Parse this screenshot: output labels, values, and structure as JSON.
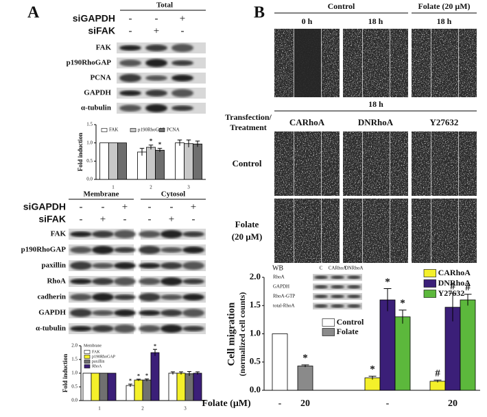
{
  "panel_a": {
    "label": "A",
    "total": {
      "header": "Total",
      "rows": [
        {
          "label": "siGAPDH",
          "signs": [
            "-",
            "-",
            "+"
          ]
        },
        {
          "label": "siFAK",
          "signs": [
            "-",
            "+",
            "-"
          ]
        }
      ],
      "blots": [
        "FAK",
        "p190RhoGAP",
        "PCNA",
        "GAPDH",
        "α-tubulin"
      ]
    },
    "fractions": {
      "headers": [
        "Membrane",
        "Cytosol"
      ],
      "rows": [
        {
          "label": "siGAPDH",
          "signs": [
            "-",
            "-",
            "+",
            "-",
            "-",
            "+"
          ]
        },
        {
          "label": "siFAK",
          "signs": [
            "-",
            "+",
            "-",
            "-",
            "+",
            "-"
          ]
        }
      ],
      "blots": [
        "FAK",
        "p190RhoGAP",
        "paxillin",
        "RhoA",
        "cadherin",
        "GAPDH",
        "α-tubulin"
      ]
    }
  },
  "panel_b": {
    "label": "B",
    "top_headers": [
      "Control",
      "Folate (20 μM)"
    ],
    "time_labels": [
      "0 h",
      "18 h",
      "18 h"
    ],
    "mid_header": "18 h",
    "row_header": [
      "Transfection/",
      "Treatment"
    ],
    "columns": [
      "CARhoA",
      "DNRhoA",
      "Y27632"
    ],
    "rows": [
      [
        "Control"
      ],
      [
        "Folate",
        "(20 μM)"
      ]
    ],
    "wb": {
      "title": "WB",
      "columns": [
        "C",
        "CARhoA",
        "DNRhoA"
      ],
      "blots": [
        "RhoA",
        "GAPDH",
        "RhoA-GTP",
        "total-RhoA"
      ]
    }
  },
  "chart_data": [
    {
      "type": "bar",
      "y_label": "Fold induction",
      "categories": [
        "1",
        "2",
        "3"
      ],
      "ylim": [
        0,
        1.5
      ],
      "yticks": [
        {
          "value": 0,
          "label": "0.0"
        },
        {
          "value": 0.5,
          "label": "0.5"
        },
        {
          "value": 1,
          "label": "1.0"
        },
        {
          "value": 1.5,
          "label": "1.5"
        }
      ],
      "series": [
        {
          "name": "FAK",
          "color": "#ffffff",
          "values": [
            1.0,
            0.75,
            1.0
          ],
          "errors": [
            0,
            0.1,
            0.08
          ],
          "significance": [
            null,
            null,
            null
          ]
        },
        {
          "name": "p190RhoGAP",
          "color": "#c8c8c8",
          "values": [
            1.0,
            0.88,
            0.98
          ],
          "errors": [
            0,
            0.06,
            0.1
          ],
          "significance": [
            null,
            "*",
            null
          ]
        },
        {
          "name": "PCNA",
          "color": "#6e6e6e",
          "values": [
            1.0,
            0.8,
            0.97
          ],
          "errors": [
            0,
            0.05,
            0.08
          ],
          "significance": [
            null,
            "*",
            null
          ]
        }
      ]
    },
    {
      "type": "bar",
      "y_label": "Fold induction",
      "legend_title": "Membrane",
      "categories": [
        "1",
        "2",
        "3"
      ],
      "ylim": [
        0,
        2
      ],
      "yticks": [
        {
          "value": 0,
          "label": "0.0"
        },
        {
          "value": 0.5,
          "label": "0.5"
        },
        {
          "value": 1,
          "label": "1.0"
        },
        {
          "value": 1.5,
          "label": "1.5"
        },
        {
          "value": 2,
          "label": "2.0"
        }
      ],
      "series": [
        {
          "name": "FAK",
          "color": "#ffffff",
          "values": [
            1.0,
            0.55,
            1.0
          ],
          "errors": [
            0,
            0.05,
            0.05
          ],
          "significance": [
            null,
            "*",
            null
          ]
        },
        {
          "name": "p190RhoGAP",
          "color": "#f4f02a",
          "values": [
            1.0,
            0.75,
            1.0
          ],
          "errors": [
            0,
            0.03,
            0.05
          ],
          "significance": [
            null,
            "*",
            null
          ]
        },
        {
          "name": "paxillin",
          "color": "#707070",
          "values": [
            1.0,
            0.75,
            0.98
          ],
          "errors": [
            0,
            0.04,
            0.08
          ],
          "significance": [
            null,
            "*",
            null
          ]
        },
        {
          "name": "RhoA",
          "color": "#3b1f78",
          "values": [
            1.0,
            1.75,
            1.0
          ],
          "errors": [
            0,
            0.12,
            0.05
          ],
          "significance": [
            null,
            "*",
            null
          ]
        }
      ]
    },
    {
      "type": "bar",
      "y_label": "Cell migration",
      "y_label_sub": "(normalized cell counts)",
      "x_label": "Folate (μM)",
      "categories": [
        "-",
        "20",
        "-",
        "20"
      ],
      "ylim": [
        0,
        2
      ],
      "yticks": [
        {
          "value": 0,
          "label": "0.0"
        },
        {
          "value": 0.5,
          "label": "0.5"
        },
        {
          "value": 1,
          "label": "1.0"
        },
        {
          "value": 1.5,
          "label": "1.5"
        },
        {
          "value": 2,
          "label": "2.0"
        }
      ],
      "series": [
        {
          "name": "Control",
          "color": "#ffffff",
          "values": [
            1.0,
            null,
            null,
            null
          ],
          "errors": [
            0,
            null,
            null,
            null
          ],
          "significance": [
            null,
            null,
            null,
            null
          ]
        },
        {
          "name": "Folate",
          "color": "#8a8a8a",
          "values": [
            null,
            0.43,
            null,
            null
          ],
          "errors": [
            null,
            0.02,
            null,
            null
          ],
          "significance": [
            null,
            "*",
            null,
            null
          ]
        },
        {
          "name": "CARhoA",
          "color": "#f4f02a",
          "values": [
            null,
            null,
            0.22,
            0.16
          ],
          "errors": [
            null,
            null,
            0.03,
            0.02
          ],
          "significance": [
            null,
            null,
            "*",
            "#"
          ]
        },
        {
          "name": "DNRhoA",
          "color": "#3b1f78",
          "values": [
            null,
            null,
            1.6,
            1.47
          ],
          "errors": [
            null,
            null,
            0.2,
            0.25
          ],
          "significance": [
            null,
            null,
            "*",
            "#"
          ]
        },
        {
          "name": "Y27632",
          "color": "#5cb83c",
          "values": [
            null,
            null,
            1.3,
            1.6
          ],
          "errors": [
            null,
            null,
            0.12,
            0.1
          ],
          "significance": [
            null,
            null,
            "*",
            "#"
          ]
        }
      ]
    }
  ]
}
